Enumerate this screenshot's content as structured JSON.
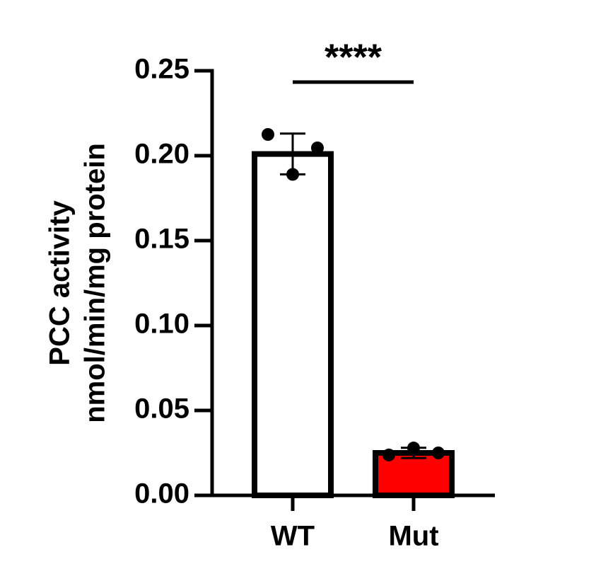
{
  "chart_data": {
    "type": "bar",
    "y_label": [
      "PCC activity",
      "nmol/min/mg protein"
    ],
    "categories": [
      "WT",
      "Mut"
    ],
    "values": [
      0.201,
      0.025
    ],
    "errors": [
      0.012,
      0.003
    ],
    "points": [
      [
        0.2125,
        0.189,
        0.2046
      ],
      [
        0.0238,
        0.0279,
        0.025
      ]
    ],
    "colors": [
      "#ffffff",
      "#ff0000"
    ],
    "ylim": [
      0,
      0.25
    ],
    "yticks": [
      {
        "value": 0,
        "label": "0.00"
      },
      {
        "value": 0.05,
        "label": "0.05"
      },
      {
        "value": 0.1,
        "label": "0.10"
      },
      {
        "value": 0.15,
        "label": "0.15"
      },
      {
        "value": 0.2,
        "label": "0.20"
      },
      {
        "value": 0.25,
        "label": "0.25"
      }
    ],
    "annotation": "****"
  }
}
